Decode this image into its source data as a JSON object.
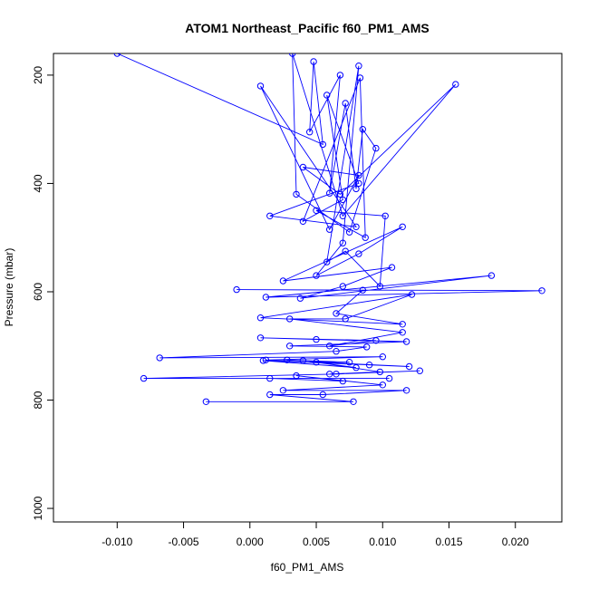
{
  "chart_data": {
    "type": "line",
    "title": "ATOM1 Northeast_Pacific f60_PM1_AMS",
    "xlabel": "f60_PM1_AMS",
    "ylabel": "Pressure (mbar)",
    "xlim": [
      -0.0148,
      0.0235
    ],
    "ylim": [
      1025,
      160
    ],
    "y_reversed": true,
    "grid": false,
    "line_color": "#0000ff",
    "marker": "open-circle",
    "x_ticks": [
      -0.01,
      -0.005,
      0.0,
      0.005,
      0.01,
      0.015,
      0.02
    ],
    "x_tick_labels": [
      "-0.010",
      "-0.005",
      "0.000",
      "0.005",
      "0.010",
      "0.015",
      "0.020"
    ],
    "y_ticks": [
      200,
      400,
      600,
      800,
      1000
    ],
    "y_tick_labels": [
      "200",
      "400",
      "600",
      "800",
      "1000"
    ],
    "series": [
      {
        "points": [
          [
            -0.01,
            160
          ],
          [
            0.0055,
            328
          ],
          [
            0.0048,
            175
          ],
          [
            0.0045,
            305
          ],
          [
            0.0068,
            200
          ],
          [
            0.006,
            418
          ],
          [
            0.0072,
            252
          ],
          [
            0.008,
            410
          ],
          [
            0.0085,
            300
          ],
          [
            0.0095,
            335
          ],
          [
            0.0075,
            490
          ],
          [
            0.0035,
            420
          ],
          [
            0.0032,
            160
          ],
          [
            0.007,
            460
          ],
          [
            0.0155,
            217
          ],
          [
            0.0068,
            420
          ],
          [
            0.004,
            370
          ],
          [
            0.0082,
            385
          ],
          [
            0.006,
            485
          ],
          [
            0.0008,
            220
          ],
          [
            0.008,
            480
          ],
          [
            0.0015,
            460
          ],
          [
            0.0082,
            400
          ],
          [
            0.0058,
            237
          ],
          [
            0.007,
            430
          ],
          [
            0.004,
            470
          ],
          [
            0.0083,
            205
          ],
          [
            0.0087,
            500
          ],
          [
            0.005,
            450
          ],
          [
            0.0102,
            460
          ],
          [
            0.0098,
            590
          ],
          [
            0.0072,
            525
          ],
          [
            0.0058,
            545
          ],
          [
            0.0082,
            183
          ],
          [
            0.007,
            510
          ],
          [
            0.005,
            570
          ],
          [
            0.0082,
            530
          ],
          [
            0.0115,
            480
          ],
          [
            0.0025,
            580
          ],
          [
            0.0107,
            555
          ],
          [
            0.007,
            590
          ],
          [
            0.0038,
            612
          ],
          [
            0.0182,
            570
          ],
          [
            0.0012,
            610
          ],
          [
            0.022,
            598
          ],
          [
            -0.001,
            596
          ],
          [
            0.0085,
            597
          ],
          [
            0.0065,
            640
          ],
          [
            0.0115,
            660
          ],
          [
            0.0008,
            648
          ],
          [
            0.0122,
            605
          ],
          [
            0.0072,
            650
          ],
          [
            0.003,
            650
          ],
          [
            0.0115,
            675
          ],
          [
            0.006,
            700
          ],
          [
            0.0095,
            690
          ],
          [
            0.0008,
            685
          ],
          [
            0.005,
            688
          ],
          [
            0.0118,
            692
          ],
          [
            0.003,
            700
          ],
          [
            0.0088,
            702
          ],
          [
            0.0065,
            710
          ],
          [
            -0.0068,
            722
          ],
          [
            0.01,
            720
          ],
          [
            0.0012,
            726
          ],
          [
            0.0075,
            730
          ],
          [
            0.0028,
            726
          ],
          [
            0.009,
            735
          ],
          [
            0.004,
            727
          ],
          [
            0.008,
            740
          ],
          [
            0.001,
            727
          ],
          [
            0.012,
            738
          ],
          [
            0.005,
            730
          ],
          [
            0.0098,
            748
          ],
          [
            0.006,
            752
          ],
          [
            0.0128,
            746
          ],
          [
            0.0065,
            752
          ],
          [
            -0.008,
            760
          ],
          [
            0.0105,
            760
          ],
          [
            0.0015,
            760
          ],
          [
            0.007,
            765
          ],
          [
            0.0035,
            755
          ],
          [
            0.01,
            772
          ],
          [
            0.0025,
            782
          ],
          [
            0.0118,
            782
          ],
          [
            0.0055,
            790
          ],
          [
            0.0015,
            790
          ],
          [
            0.0078,
            803
          ],
          [
            -0.0033,
            803
          ]
        ]
      }
    ]
  }
}
